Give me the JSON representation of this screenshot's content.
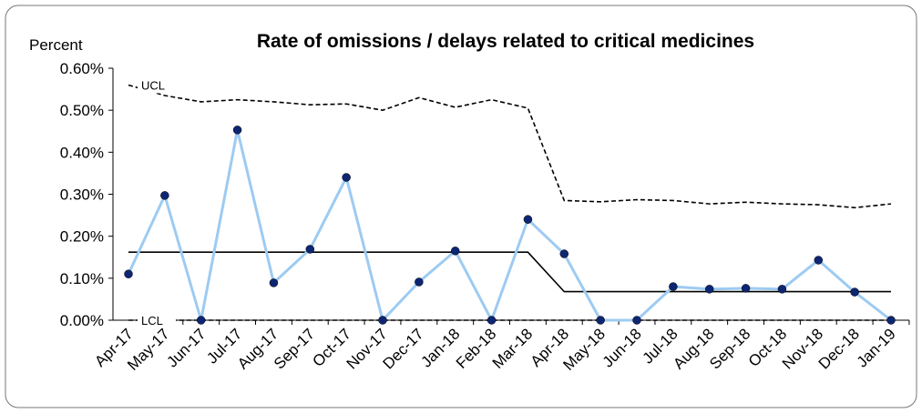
{
  "chart_data": {
    "type": "line",
    "title": "Rate of omissions / delays related to critical medicines",
    "y_label": "Percent",
    "categories": [
      "Apr-17",
      "May-17",
      "Jun-17",
      "Jul-17",
      "Aug-17",
      "Sep-17",
      "Oct-17",
      "Nov-17",
      "Dec-17",
      "Jan-18",
      "Feb-18",
      "Mar-18",
      "Apr-18",
      "May-18",
      "Jun-18",
      "Jul-18",
      "Aug-18",
      "Sep-18",
      "Oct-18",
      "Nov-18",
      "Dec-18",
      "Jan-19"
    ],
    "series": [
      {
        "color": "#000000",
        "dash": false,
        "markers": false,
        "values": [
          0.162,
          0.162,
          0.162,
          0.162,
          0.162,
          0.162,
          0.162,
          0.162,
          0.162,
          0.162,
          0.162,
          0.162,
          0.068,
          0.068,
          0.068,
          0.068,
          0.068,
          0.068,
          0.068,
          0.068,
          0.068,
          0.068
        ]
      },
      {
        "name": "UCL",
        "color": "#000000",
        "dash": true,
        "markers": false,
        "values": [
          0.56,
          0.535,
          0.52,
          0.525,
          0.52,
          0.513,
          0.515,
          0.5,
          0.53,
          0.507,
          0.525,
          0.505,
          0.285,
          0.282,
          0.287,
          0.285,
          0.277,
          0.281,
          0.277,
          0.275,
          0.268,
          0.277
        ]
      },
      {
        "name": "LCL",
        "color": "#000000",
        "dash": true,
        "markers": false,
        "values": [
          0,
          0,
          0,
          0,
          0,
          0,
          0,
          0,
          0,
          0,
          0,
          0,
          0,
          0,
          0,
          0,
          0,
          0,
          0,
          0,
          0,
          0
        ]
      },
      {
        "color": "#9dcbf2",
        "marker_color": "#0d2673",
        "dash": false,
        "markers": true,
        "values": [
          0.11,
          0.297,
          0,
          0.453,
          0.089,
          0.169,
          0.34,
          0,
          0.091,
          0.165,
          0,
          0.24,
          0.158,
          0,
          0,
          0.08,
          0.074,
          0.076,
          0.074,
          0.143,
          0.067,
          0
        ]
      }
    ],
    "ylim": [
      0,
      0.6
    ],
    "yticks": [
      {
        "value": 0,
        "label": "0.00%"
      },
      {
        "value": 0.1,
        "label": "0.10%"
      },
      {
        "value": 0.2,
        "label": "0.20%"
      },
      {
        "value": 0.3,
        "label": "0.30%"
      },
      {
        "value": 0.4,
        "label": "0.40%"
      },
      {
        "value": 0.5,
        "label": "0.50%"
      },
      {
        "value": 0.6,
        "label": "0.60%"
      }
    ],
    "grid": false
  }
}
